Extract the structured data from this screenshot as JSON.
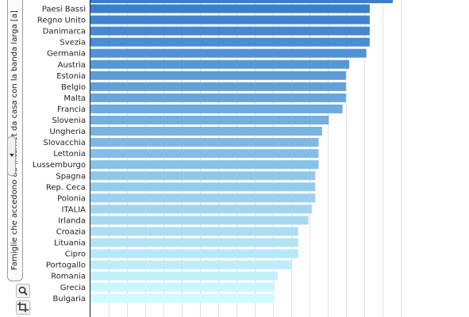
{
  "panel": {
    "label": "Famiglie che accedono ad Internet da casa con la banda larga [a]"
  },
  "icons": {
    "collapse": "chevron-down-icon",
    "zoom": "magnifier-icon",
    "crop": "crop-icon"
  },
  "colors": {
    "bar_dark": "#3a7fcb",
    "bar_light": "#cdfbff",
    "grid": "#e2e2e2",
    "axis": "#222222"
  },
  "chart_data": {
    "type": "bar",
    "orientation": "horizontal",
    "grid": true,
    "xlim": [
      0,
      96
    ],
    "categories": [
      "Paesi Bassi",
      "Regno Unito",
      "Danimarca",
      "Svezia",
      "Germania",
      "Austria",
      "Estonia",
      "Belgio",
      "Malta",
      "Francia",
      "Slovenia",
      "Ungheria",
      "Slovacchia",
      "Lettonia",
      "Lussemburgo",
      "Spagna",
      "Rep. Ceca",
      "Polonia",
      "ITALIA",
      "Irlanda",
      "Croazia",
      "Lituania",
      "Cipro",
      "Portogallo",
      "Romania",
      "Grecia",
      "Bulgaria"
    ],
    "values": [
      82,
      82,
      82,
      82,
      81,
      76,
      75,
      75,
      75,
      74,
      70,
      68,
      67,
      67,
      67,
      66,
      66,
      66,
      65,
      64,
      61,
      61,
      61,
      59,
      55,
      54,
      54
    ]
  }
}
